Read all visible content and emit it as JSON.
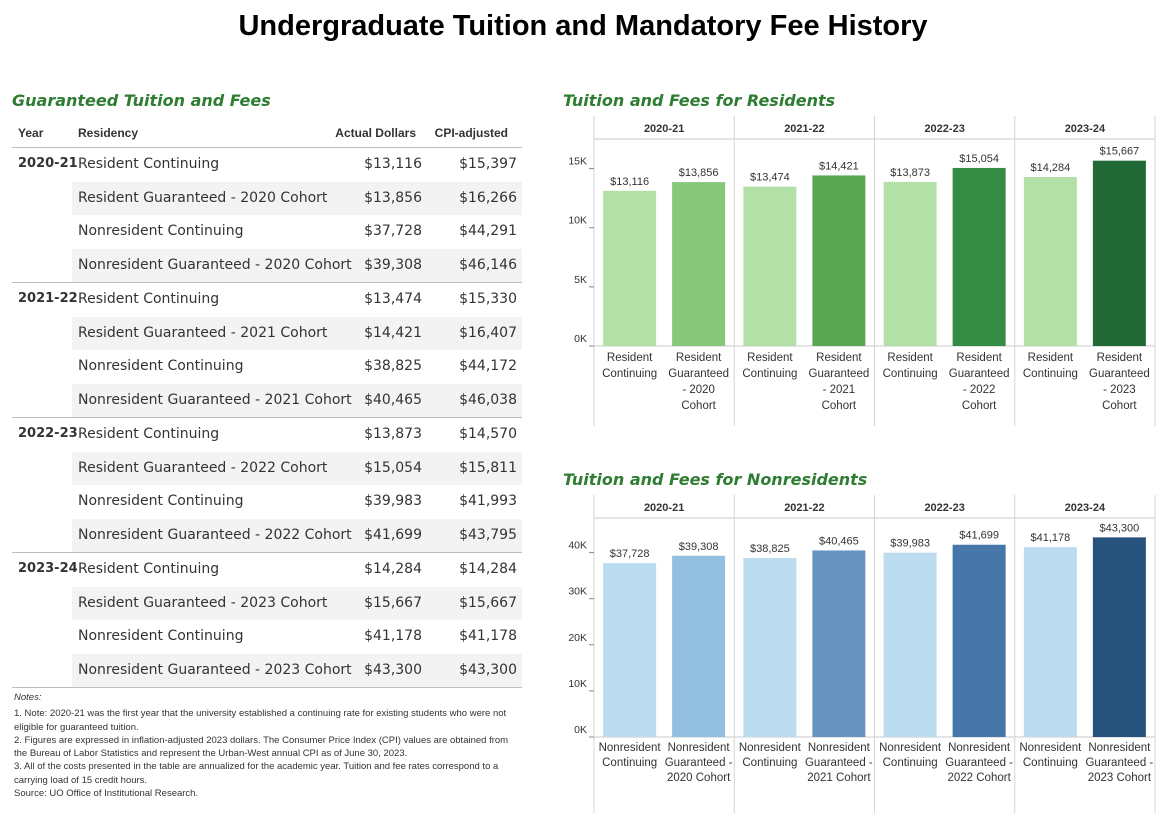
{
  "title": "Undergraduate Tuition and Mandatory Fee History",
  "table": {
    "title": "Guaranteed Tuition and Fees",
    "headers": {
      "year": "Year",
      "residency": "Residency",
      "actual": "Actual Dollars",
      "cpi": "CPI-adjusted"
    },
    "groups": [
      {
        "year": "2020-21",
        "rows": [
          {
            "residency": "Resident Continuing",
            "actual": "$13,116",
            "cpi": "$15,397"
          },
          {
            "residency": "Resident Guaranteed - 2020 Cohort",
            "actual": "$13,856",
            "cpi": "$16,266"
          },
          {
            "residency": "Nonresident Continuing",
            "actual": "$37,728",
            "cpi": "$44,291"
          },
          {
            "residency": "Nonresident Guaranteed - 2020 Cohort",
            "actual": "$39,308",
            "cpi": "$46,146"
          }
        ]
      },
      {
        "year": "2021-22",
        "rows": [
          {
            "residency": "Resident Continuing",
            "actual": "$13,474",
            "cpi": "$15,330"
          },
          {
            "residency": "Resident Guaranteed - 2021 Cohort",
            "actual": "$14,421",
            "cpi": "$16,407"
          },
          {
            "residency": "Nonresident Continuing",
            "actual": "$38,825",
            "cpi": "$44,172"
          },
          {
            "residency": "Nonresident Guaranteed - 2021 Cohort",
            "actual": "$40,465",
            "cpi": "$46,038"
          }
        ]
      },
      {
        "year": "2022-23",
        "rows": [
          {
            "residency": "Resident Continuing",
            "actual": "$13,873",
            "cpi": "$14,570"
          },
          {
            "residency": "Resident Guaranteed - 2022 Cohort",
            "actual": "$15,054",
            "cpi": "$15,811"
          },
          {
            "residency": "Nonresident Continuing",
            "actual": "$39,983",
            "cpi": "$41,993"
          },
          {
            "residency": "Nonresident Guaranteed - 2022 Cohort",
            "actual": "$41,699",
            "cpi": "$43,795"
          }
        ]
      },
      {
        "year": "2023-24",
        "rows": [
          {
            "residency": "Resident Continuing",
            "actual": "$14,284",
            "cpi": "$14,284"
          },
          {
            "residency": "Resident Guaranteed - 2023 Cohort",
            "actual": "$15,667",
            "cpi": "$15,667"
          },
          {
            "residency": "Nonresident Continuing",
            "actual": "$41,178",
            "cpi": "$41,178"
          },
          {
            "residency": "Nonresident Guaranteed - 2023 Cohort",
            "actual": "$43,300",
            "cpi": "$43,300"
          }
        ]
      }
    ]
  },
  "notes": {
    "heading": "Notes:",
    "lines": [
      "1. Note: 2020-21 was the first year that the university established a continuing rate for existing students who were not eligible for guaranteed tuition.",
      "2. Figures are expressed in inflation-adjusted 2023 dollars. The Consumer Price Index (CPI) values are obtained from the Bureau of Labor Statistics and represent the Urban-West annual CPI as of June 30, 2023.",
      "3. All of the costs presented in the table are annualized for the academic year. Tuition and fee rates correspond to a carrying load of 15 credit hours.",
      "Source: UO Office of Institutional Research."
    ]
  },
  "chart_data": [
    {
      "type": "bar",
      "title": "Tuition and Fees for Residents",
      "panels": [
        "2020-21",
        "2021-22",
        "2022-23",
        "2023-24"
      ],
      "categories": [
        [
          "Resident Continuing",
          "Resident Guaranteed - 2020 Cohort"
        ],
        [
          "Resident Continuing",
          "Resident Guaranteed - 2021 Cohort"
        ],
        [
          "Resident Continuing",
          "Resident Guaranteed - 2022 Cohort"
        ],
        [
          "Resident Continuing",
          "Resident Guaranteed - 2023 Cohort"
        ]
      ],
      "category_label_lines": [
        [
          [
            "Resident",
            "Continuing"
          ],
          [
            "Resident",
            "Guaranteed",
            "- 2020",
            "Cohort"
          ]
        ],
        [
          [
            "Resident",
            "Continuing"
          ],
          [
            "Resident",
            "Guaranteed",
            "- 2021",
            "Cohort"
          ]
        ],
        [
          [
            "Resident",
            "Continuing"
          ],
          [
            "Resident",
            "Guaranteed",
            "- 2022",
            "Cohort"
          ]
        ],
        [
          [
            "Resident",
            "Continuing"
          ],
          [
            "Resident",
            "Guaranteed",
            "- 2023",
            "Cohort"
          ]
        ]
      ],
      "values": [
        [
          13116,
          13856
        ],
        [
          13474,
          14421
        ],
        [
          13873,
          15054
        ],
        [
          14284,
          15667
        ]
      ],
      "data_labels": [
        [
          "$13,116",
          "$13,856"
        ],
        [
          "$13,474",
          "$14,421"
        ],
        [
          "$13,873",
          "$15,054"
        ],
        [
          "$14,284",
          "$15,667"
        ]
      ],
      "colors": [
        [
          "#b3e0a6",
          "#86c77a"
        ],
        [
          "#b3e0a6",
          "#5aa653"
        ],
        [
          "#b3e0a6",
          "#368b45"
        ],
        [
          "#b3e0a6",
          "#216a37"
        ]
      ],
      "ylim": [
        0,
        17500
      ],
      "yticks": [
        0,
        5000,
        10000,
        15000
      ],
      "ytick_labels": [
        "0K",
        "5K",
        "10K",
        "15K"
      ],
      "grid": false
    },
    {
      "type": "bar",
      "title": "Tuition and Fees for Nonresidents",
      "panels": [
        "2020-21",
        "2021-22",
        "2022-23",
        "2023-24"
      ],
      "categories": [
        [
          "Nonresident Continuing",
          "Nonresident Guaranteed - 2020 Cohort"
        ],
        [
          "Nonresident Continuing",
          "Nonresident Guaranteed - 2021 Cohort"
        ],
        [
          "Nonresident Continuing",
          "Nonresident Guaranteed - 2022 Cohort"
        ],
        [
          "Nonresident Continuing",
          "Nonresident Guaranteed - 2023 Cohort"
        ]
      ],
      "category_label_lines": [
        [
          [
            "Nonresident",
            "Continuing"
          ],
          [
            "Nonresident",
            "Guaranteed -",
            "2020 Cohort"
          ]
        ],
        [
          [
            "Nonresident",
            "Continuing"
          ],
          [
            "Nonresident",
            "Guaranteed -",
            "2021 Cohort"
          ]
        ],
        [
          [
            "Nonresident",
            "Continuing"
          ],
          [
            "Nonresident",
            "Guaranteed -",
            "2022 Cohort"
          ]
        ],
        [
          [
            "Nonresident",
            "Continuing"
          ],
          [
            "Nonresident",
            "Guaranteed -",
            "2023 Cohort"
          ]
        ]
      ],
      "values": [
        [
          37728,
          39308
        ],
        [
          38825,
          40465
        ],
        [
          39983,
          41699
        ],
        [
          41178,
          43300
        ]
      ],
      "data_labels": [
        [
          "$37,728",
          "$39,308"
        ],
        [
          "$38,825",
          "$40,465"
        ],
        [
          "$39,983",
          "$41,699"
        ],
        [
          "$41,178",
          "$43,300"
        ]
      ],
      "colors": [
        [
          "#bcdcf0",
          "#93bfe0"
        ],
        [
          "#bcdcf0",
          "#6795c0"
        ],
        [
          "#bcdcf0",
          "#4677a8"
        ],
        [
          "#bcdcf0",
          "#27527c"
        ]
      ],
      "ylim": [
        0,
        47500
      ],
      "yticks": [
        0,
        10000,
        20000,
        30000,
        40000
      ],
      "ytick_labels": [
        "0K",
        "10K",
        "20K",
        "30K",
        "40K"
      ],
      "grid": false
    }
  ]
}
